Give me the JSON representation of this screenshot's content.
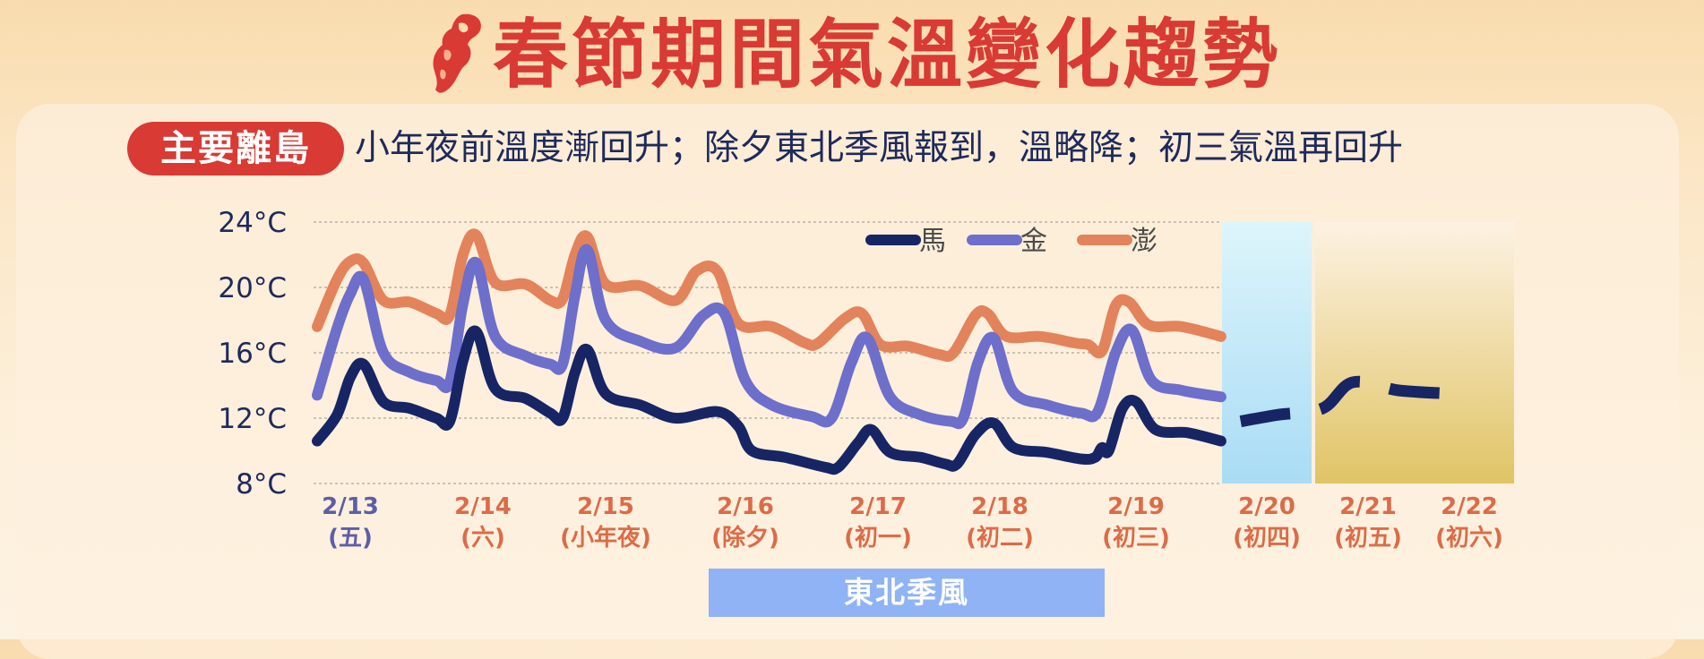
{
  "header": {
    "title": "春節期間氣溫變化趨勢"
  },
  "tag": {
    "label": "主要離島"
  },
  "subtitle": "小年夜前溫度漸回升；除夕東北季風報到，溫略降；初三氣溫再回升",
  "banner": {
    "label": "東北季風"
  },
  "colors": {
    "title": "#d93a34",
    "ma": "#172565",
    "jin": "#6d6fcb",
    "peng": "#e3835b",
    "tick_date_blue": "#5d5ea8",
    "tick_date_red": "#dc6b47",
    "banner": "#8fb3f5"
  },
  "chart_data": {
    "type": "line",
    "y_unit": "°C",
    "ylim": [
      8,
      24
    ],
    "y_ticks": [
      "24°C",
      "20°C",
      "16°C",
      "12°C",
      "8°C"
    ],
    "grid": true,
    "legend_position": "top",
    "x_ticks": [
      {
        "date": "2/13",
        "day": "(五)",
        "color": "blue"
      },
      {
        "date": "2/14",
        "day": "(六)",
        "color": "red"
      },
      {
        "date": "2/15",
        "day": "(小年夜)",
        "color": "red"
      },
      {
        "date": "2/16",
        "day": "(除夕)",
        "color": "red"
      },
      {
        "date": "2/17",
        "day": "(初一)",
        "color": "red"
      },
      {
        "date": "2/18",
        "day": "(初二)",
        "color": "red"
      },
      {
        "date": "2/19",
        "day": "(初三)",
        "color": "red"
      },
      {
        "date": "2/20",
        "day": "(初四)",
        "color": "red"
      },
      {
        "date": "2/21",
        "day": "(初五)",
        "color": "red"
      },
      {
        "date": "2/22",
        "day": "(初六)",
        "color": "red"
      }
    ],
    "x_range": [
      0,
      7.1
    ],
    "series": [
      {
        "name": "馬",
        "color": "#172565",
        "points": [
          [
            -0.25,
            10.6
          ],
          [
            -0.1,
            12.2
          ],
          [
            0,
            14.5
          ],
          [
            0.1,
            15.3
          ],
          [
            0.25,
            13.0
          ],
          [
            0.45,
            12.6
          ],
          [
            0.65,
            12.0
          ],
          [
            0.75,
            11.8
          ],
          [
            0.85,
            15.5
          ],
          [
            0.95,
            17.3
          ],
          [
            1.1,
            13.8
          ],
          [
            1.35,
            13.2
          ],
          [
            1.55,
            12.3
          ],
          [
            1.65,
            12.0
          ],
          [
            1.75,
            14.8
          ],
          [
            1.85,
            16.2
          ],
          [
            2.0,
            13.5
          ],
          [
            2.25,
            12.8
          ],
          [
            2.5,
            12.0
          ],
          [
            2.8,
            12.4
          ],
          [
            2.95,
            11.5
          ],
          [
            3.05,
            10.0
          ],
          [
            3.3,
            9.6
          ],
          [
            3.6,
            9.0
          ],
          [
            3.7,
            9.0
          ],
          [
            3.85,
            10.5
          ],
          [
            3.95,
            11.3
          ],
          [
            4.1,
            9.9
          ],
          [
            4.35,
            9.6
          ],
          [
            4.55,
            9.2
          ],
          [
            4.65,
            9.2
          ],
          [
            4.8,
            11.0
          ],
          [
            4.95,
            11.7
          ],
          [
            5.1,
            10.2
          ],
          [
            5.35,
            9.9
          ],
          [
            5.6,
            9.5
          ],
          [
            5.7,
            9.6
          ],
          [
            5.75,
            10.2
          ],
          [
            5.8,
            10.0
          ],
          [
            5.9,
            12.6
          ],
          [
            6.0,
            13.0
          ],
          [
            6.15,
            11.3
          ],
          [
            6.4,
            11.1
          ],
          [
            6.65,
            10.6
          ]
        ],
        "projection": [
          [
            6.8,
            11.8
          ],
          [
            7.1,
            12.2
          ],
          [
            7.55,
            12.6
          ],
          [
            7.85,
            14.2
          ],
          [
            8.3,
            13.7
          ],
          [
            8.8,
            13.5
          ]
        ]
      },
      {
        "name": "金",
        "color": "#6d6fcb",
        "points": [
          [
            -0.25,
            13.4
          ],
          [
            -0.1,
            17.5
          ],
          [
            0,
            19.6
          ],
          [
            0.1,
            20.5
          ],
          [
            0.25,
            16.0
          ],
          [
            0.45,
            14.8
          ],
          [
            0.65,
            14.3
          ],
          [
            0.75,
            14.2
          ],
          [
            0.85,
            19.0
          ],
          [
            0.95,
            21.5
          ],
          [
            1.1,
            17.0
          ],
          [
            1.35,
            15.8
          ],
          [
            1.55,
            15.3
          ],
          [
            1.65,
            15.3
          ],
          [
            1.75,
            19.5
          ],
          [
            1.85,
            22.3
          ],
          [
            2.0,
            18.0
          ],
          [
            2.25,
            16.7
          ],
          [
            2.5,
            16.3
          ],
          [
            2.7,
            18.3
          ],
          [
            2.85,
            18.4
          ],
          [
            3.0,
            14.3
          ],
          [
            3.2,
            12.8
          ],
          [
            3.5,
            12.1
          ],
          [
            3.65,
            12.0
          ],
          [
            3.8,
            15.4
          ],
          [
            3.92,
            16.9
          ],
          [
            4.1,
            13.3
          ],
          [
            4.35,
            12.2
          ],
          [
            4.6,
            11.8
          ],
          [
            4.7,
            12.0
          ],
          [
            4.82,
            15.4
          ],
          [
            4.95,
            16.9
          ],
          [
            5.1,
            13.6
          ],
          [
            5.35,
            12.8
          ],
          [
            5.6,
            12.3
          ],
          [
            5.72,
            12.4
          ],
          [
            5.85,
            16.0
          ],
          [
            5.97,
            17.4
          ],
          [
            6.12,
            14.3
          ],
          [
            6.35,
            13.7
          ],
          [
            6.65,
            13.3
          ]
        ]
      },
      {
        "name": "澎",
        "color": "#e3835b",
        "points": [
          [
            -0.25,
            17.6
          ],
          [
            -0.1,
            20.5
          ],
          [
            0,
            21.6
          ],
          [
            0.1,
            21.5
          ],
          [
            0.25,
            19.2
          ],
          [
            0.45,
            19.1
          ],
          [
            0.65,
            18.4
          ],
          [
            0.75,
            18.3
          ],
          [
            0.85,
            22.0
          ],
          [
            0.95,
            23.2
          ],
          [
            1.1,
            20.3
          ],
          [
            1.35,
            20.2
          ],
          [
            1.55,
            19.2
          ],
          [
            1.65,
            19.3
          ],
          [
            1.75,
            22.0
          ],
          [
            1.85,
            23.1
          ],
          [
            2.0,
            20.2
          ],
          [
            2.25,
            20.1
          ],
          [
            2.5,
            19.2
          ],
          [
            2.65,
            21.0
          ],
          [
            2.8,
            21.0
          ],
          [
            2.95,
            17.8
          ],
          [
            3.2,
            17.6
          ],
          [
            3.45,
            16.6
          ],
          [
            3.55,
            16.6
          ],
          [
            3.75,
            18.1
          ],
          [
            3.88,
            18.4
          ],
          [
            4.02,
            16.5
          ],
          [
            4.25,
            16.4
          ],
          [
            4.5,
            15.9
          ],
          [
            4.62,
            16.0
          ],
          [
            4.8,
            18.3
          ],
          [
            4.9,
            18.4
          ],
          [
            5.05,
            17.0
          ],
          [
            5.3,
            17.0
          ],
          [
            5.55,
            16.6
          ],
          [
            5.65,
            16.5
          ],
          [
            5.75,
            16.1
          ],
          [
            5.85,
            18.9
          ],
          [
            5.95,
            19.1
          ],
          [
            6.1,
            17.7
          ],
          [
            6.35,
            17.6
          ],
          [
            6.65,
            17.0
          ]
        ]
      }
    ]
  }
}
